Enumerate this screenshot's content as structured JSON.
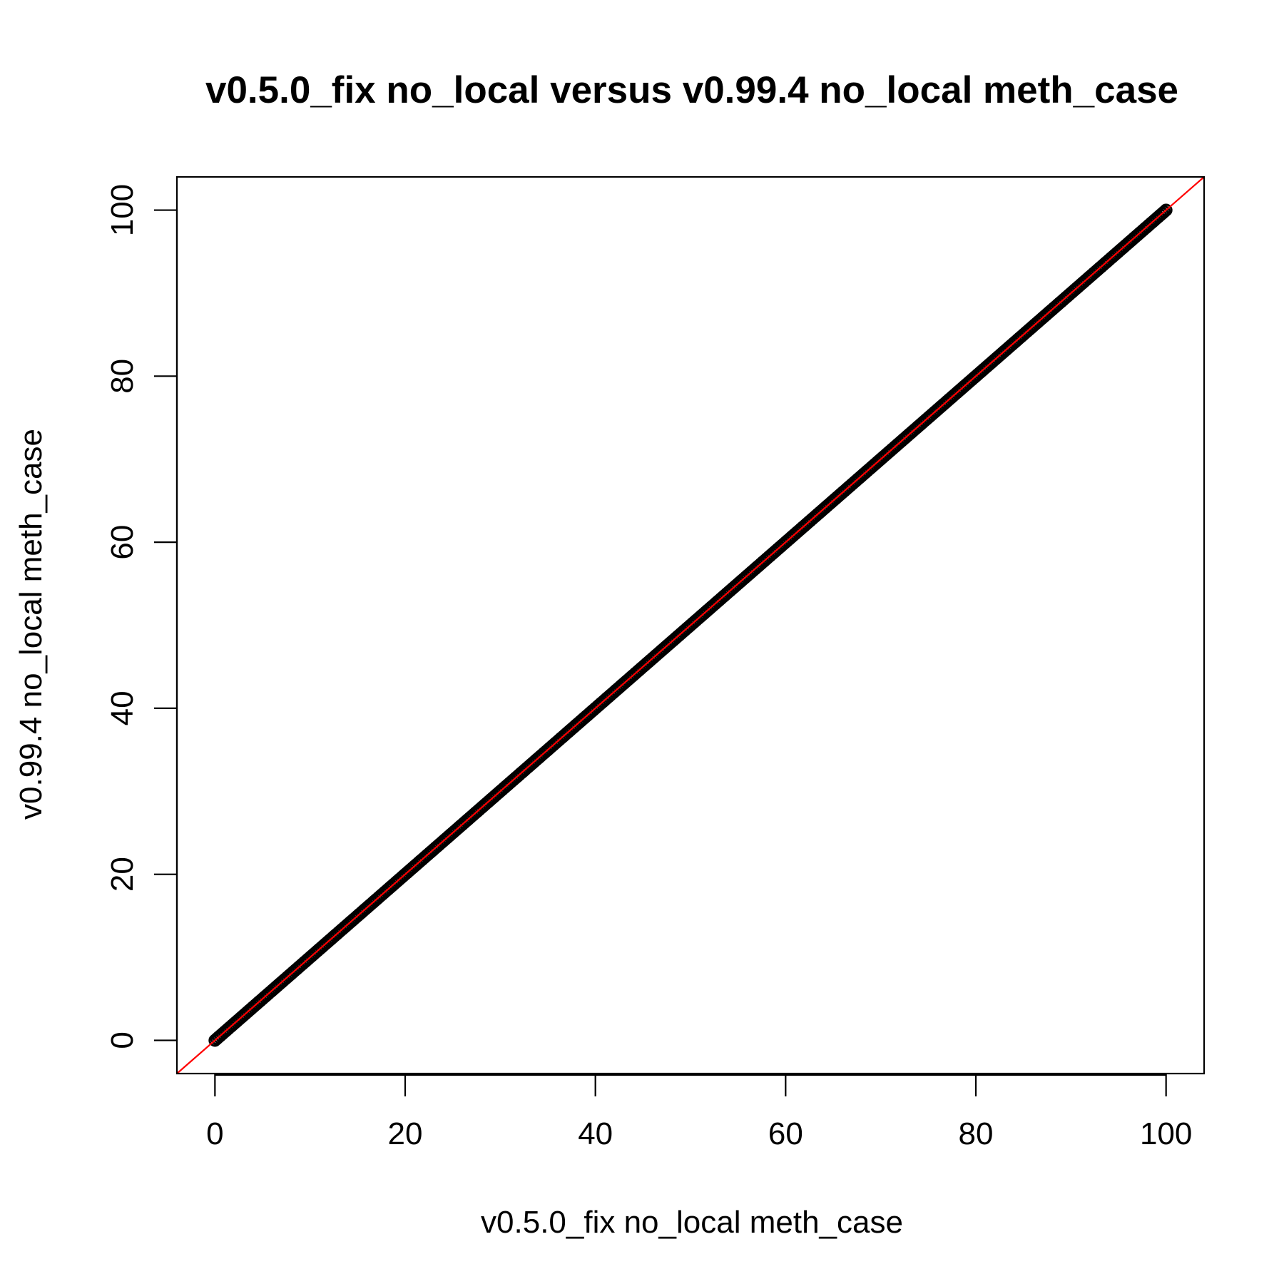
{
  "chart_data": {
    "type": "scatter",
    "title": "v0.5.0_fix no_local versus v0.99.4 no_local meth_case",
    "xlabel": "v0.5.0_fix no_local meth_case",
    "ylabel": "v0.99.4 no_local meth_case",
    "xlim": [
      -4,
      104
    ],
    "ylim": [
      -4,
      104
    ],
    "xticks": [
      0,
      20,
      40,
      60,
      80,
      100
    ],
    "yticks": [
      0,
      20,
      40,
      60,
      80,
      100
    ],
    "x_tick_labels": [
      "0",
      "20",
      "40",
      "60",
      "80",
      "100"
    ],
    "y_tick_labels": [
      "0",
      "20",
      "40",
      "60",
      "80",
      "100"
    ],
    "grid": false,
    "series": [
      {
        "points_pattern": "x = y for every point, dense from 0 to 100",
        "x_min": 0,
        "x_max": 100,
        "color": "#000000"
      }
    ],
    "reference_line": {
      "slope": 1,
      "intercept": 0,
      "color": "#ff0000"
    }
  }
}
